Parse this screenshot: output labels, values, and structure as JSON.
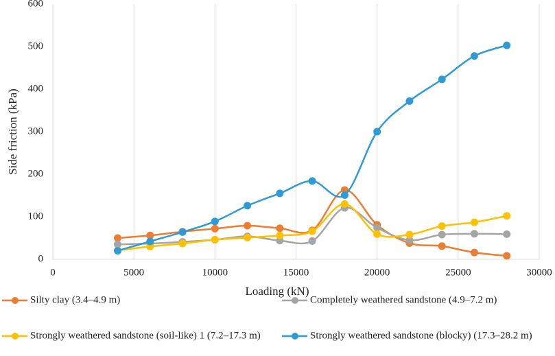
{
  "chart_data": {
    "type": "line",
    "x_label": "Loading (kN)",
    "y_label": "Side friction (kPa)",
    "x": [
      4000,
      6000,
      8000,
      10000,
      12000,
      14000,
      16000,
      18000,
      20000,
      22000,
      24000,
      26000,
      28000
    ],
    "series": [
      {
        "name": "Silty clay (3.4–4.9 m)",
        "color": "#ed7d31",
        "values": [
          50,
          56,
          65,
          72,
          79,
          73,
          68,
          163,
          81,
          38,
          31,
          16,
          8
        ]
      },
      {
        "name": "Completely weathered sandstone (4.9–7.2 m)",
        "color": "#a5a5a5",
        "values": [
          35,
          37,
          41,
          46,
          54,
          44,
          43,
          121,
          74,
          45,
          58,
          60,
          59
        ]
      },
      {
        "name": "Strongly weathered sandstone (soil-like) 1 (7.2–17.3 m)",
        "color": "#ffc000",
        "values": [
          21,
          30,
          37,
          46,
          51,
          56,
          66,
          130,
          59,
          58,
          78,
          87,
          102
        ]
      },
      {
        "name": "Strongly weathered sandstone (blocky) (17.3–28.2 m)",
        "color": "#2e9bd6",
        "values": [
          20,
          42,
          64,
          89,
          126,
          155,
          184,
          151,
          300,
          372,
          423,
          478,
          503
        ]
      }
    ],
    "xlim": [
      0,
      30000
    ],
    "xticks": [
      0,
      5000,
      10000,
      15000,
      20000,
      25000,
      30000
    ],
    "ylim": [
      0,
      600
    ],
    "yticks": [
      0,
      100,
      200,
      300,
      400,
      500,
      600
    ],
    "grid": "x",
    "smooth": true,
    "legend": "bottom"
  }
}
